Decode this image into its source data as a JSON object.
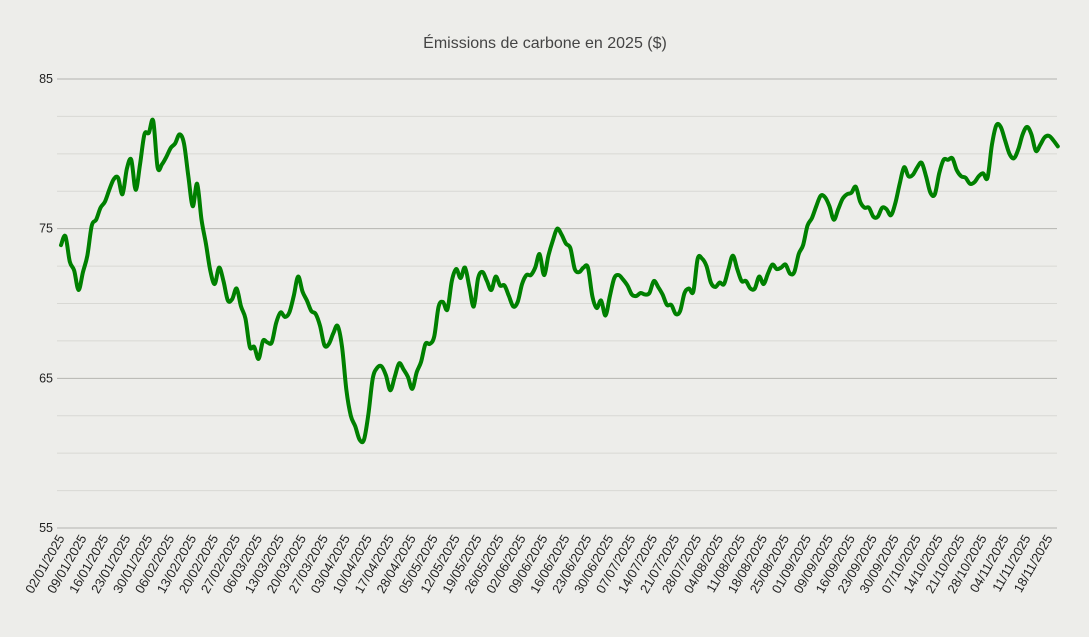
{
  "chart_data": {
    "type": "line",
    "title": "Émissions de carbone en 2025 ($)",
    "xlabel": "",
    "ylabel": "",
    "ylim": [
      55,
      85
    ],
    "y_ticks": [
      "55",
      "65",
      "75",
      "85"
    ],
    "y_minor_step": 2.5,
    "grid": true,
    "line_color": "#008000",
    "background": "#ededea",
    "x_tick_every_points": 5,
    "x_tick_labels": [
      "02/01/2025",
      "09/01/2025",
      "16/01/2025",
      "23/01/2025",
      "30/01/2025",
      "06/02/2025",
      "13/02/2025",
      "20/02/2025",
      "27/02/2025",
      "06/03/2025",
      "13/03/2025",
      "20/03/2025",
      "27/03/2025",
      "03/04/2025",
      "10/04/2025",
      "17/04/2025",
      "28/04/2025",
      "05/05/2025",
      "12/05/2025",
      "19/05/2025",
      "26/05/2025",
      "02/06/2025",
      "09/06/2025",
      "16/06/2025",
      "23/06/2025",
      "30/06/2025",
      "07/07/2025",
      "14/07/2025",
      "21/07/2025",
      "28/07/2025",
      "04/08/2025",
      "11/08/2025",
      "18/08/2025",
      "25/08/2025",
      "01/09/2025",
      "09/09/2025",
      "16/09/2025",
      "23/09/2025",
      "30/09/2025",
      "07/10/2025",
      "14/10/2025",
      "21/10/2025",
      "28/10/2025",
      "04/11/2025",
      "11/11/2025",
      "18/11/2025"
    ],
    "series": [
      {
        "values": [
          73.9,
          74.5,
          72.8,
          72.2,
          70.9,
          72.1,
          73.2,
          75.2,
          75.6,
          76.4,
          76.8,
          77.6,
          78.3,
          78.4,
          77.3,
          79.0,
          79.6,
          77.6,
          79.3,
          81.3,
          81.4,
          82.2,
          79.1,
          79.3,
          79.8,
          80.4,
          80.7,
          81.3,
          80.7,
          78.5,
          76.5,
          78.0,
          75.6,
          74.0,
          72.2,
          71.3,
          72.4,
          71.5,
          70.2,
          70.3,
          71.0,
          69.8,
          69.0,
          67.1,
          67.1,
          66.3,
          67.5,
          67.4,
          67.4,
          68.7,
          69.4,
          69.1,
          69.4,
          70.5,
          71.8,
          70.8,
          70.2,
          69.5,
          69.3,
          68.5,
          67.2,
          67.3,
          68.0,
          68.5,
          67.1,
          64.2,
          62.5,
          61.8,
          60.9,
          60.9,
          62.6,
          65.0,
          65.7,
          65.8,
          65.2,
          64.2,
          65.1,
          66.0,
          65.6,
          65.1,
          64.3,
          65.4,
          66.1,
          67.3,
          67.3,
          67.8,
          69.8,
          70.1,
          69.6,
          71.5,
          72.3,
          71.7,
          72.4,
          71.1,
          69.8,
          71.7,
          72.1,
          71.5,
          70.9,
          71.8,
          71.2,
          71.2,
          70.5,
          69.8,
          70.1,
          71.3,
          71.9,
          71.9,
          72.4,
          73.3,
          71.9,
          73.2,
          74.2,
          75.0,
          74.6,
          74.0,
          73.7,
          72.3,
          72.1,
          72.4,
          72.4,
          70.5,
          69.7,
          70.2,
          69.2,
          70.5,
          71.7,
          71.9,
          71.6,
          71.2,
          70.6,
          70.5,
          70.7,
          70.6,
          70.7,
          71.5,
          71.1,
          70.6,
          69.9,
          69.9,
          69.3,
          69.5,
          70.7,
          71.0,
          70.8,
          73.0,
          73.0,
          72.5,
          71.4,
          71.1,
          71.4,
          71.3,
          72.3,
          73.2,
          72.3,
          71.5,
          71.5,
          71.0,
          71.0,
          71.8,
          71.3,
          72.0,
          72.6,
          72.3,
          72.4,
          72.6,
          72.0,
          72.1,
          73.3,
          73.9,
          75.2,
          75.7,
          76.5,
          77.2,
          77.1,
          76.5,
          75.6,
          76.3,
          77.0,
          77.3,
          77.4,
          77.8,
          76.8,
          76.4,
          76.4,
          75.8,
          75.8,
          76.4,
          76.3,
          75.9,
          76.7,
          78.0,
          79.1,
          78.5,
          78.6,
          79.1,
          79.4,
          78.5,
          77.4,
          77.3,
          78.7,
          79.6,
          79.6,
          79.7,
          78.9,
          78.5,
          78.4,
          78.0,
          78.1,
          78.5,
          78.7,
          78.4,
          80.6,
          81.9,
          81.8,
          80.9,
          80.0,
          79.7,
          80.3,
          81.3,
          81.8,
          81.3,
          80.2,
          80.6,
          81.1,
          81.2,
          80.9,
          80.5
        ]
      }
    ]
  }
}
